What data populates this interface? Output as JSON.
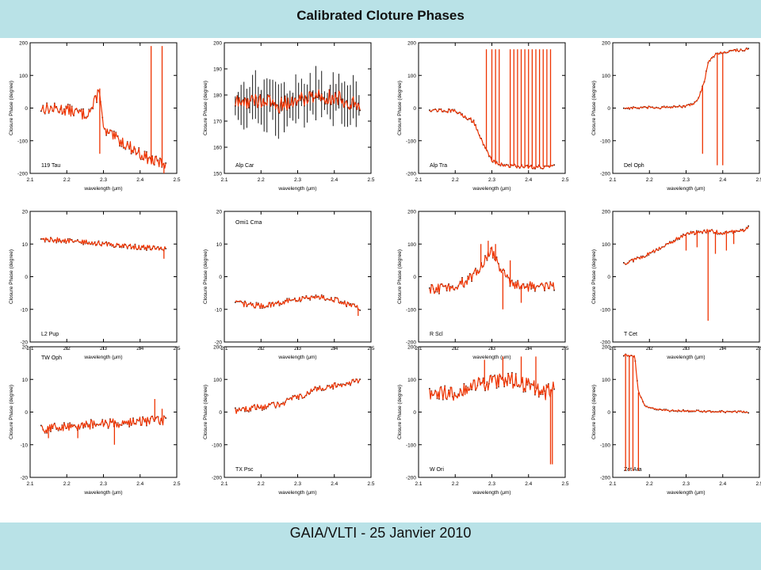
{
  "header": {
    "title": "Calibrated Cloture Phases"
  },
  "footer": {
    "text": "GAIA/VLTI - 25 Janvier 2010"
  },
  "colors": {
    "band": "#b9e2e7",
    "data_line": "#ee3300",
    "data_points": "#000000"
  },
  "chart_data": [
    {
      "type": "line",
      "label": "119 Tau",
      "label_pos": "bottom-left",
      "xlabel": "wavelength (μm)",
      "ylabel": "Closure Phase (degree)",
      "xlim": [
        2.1,
        2.5
      ],
      "ylim": [
        -200,
        200
      ],
      "xticks": [
        "2.1",
        "2.2",
        "2.3",
        "2.4",
        "2.5"
      ],
      "yticks": [
        "-200",
        "-100",
        "0",
        "100",
        "200"
      ],
      "points": [
        [
          2.13,
          0
        ],
        [
          2.2,
          -5
        ],
        [
          2.25,
          -20
        ],
        [
          2.27,
          0
        ],
        [
          2.29,
          60
        ],
        [
          2.3,
          -70
        ],
        [
          2.33,
          -90
        ],
        [
          2.36,
          -110
        ],
        [
          2.4,
          -140
        ],
        [
          2.43,
          -160
        ],
        [
          2.46,
          -170
        ],
        [
          2.47,
          -165
        ]
      ],
      "noise": 18,
      "spikes": [
        [
          2.29,
          -140
        ],
        [
          2.43,
          190
        ],
        [
          2.46,
          190
        ],
        [
          2.465,
          -200
        ]
      ]
    },
    {
      "type": "line",
      "label": "Alp Car",
      "label_pos": "bottom-left",
      "xlabel": "wavelength (μm)",
      "ylabel": "Closure Phase (degree)",
      "xlim": [
        2.1,
        2.5
      ],
      "ylim": [
        150,
        200
      ],
      "xticks": [
        "2.1",
        "2.2",
        "2.3",
        "2.4",
        "2.5"
      ],
      "yticks": [
        "150",
        "160",
        "170",
        "180",
        "190",
        "200"
      ],
      "points": [
        [
          2.13,
          177
        ],
        [
          2.2,
          178
        ],
        [
          2.25,
          176
        ],
        [
          2.3,
          178
        ],
        [
          2.35,
          180
        ],
        [
          2.4,
          179
        ],
        [
          2.45,
          177
        ],
        [
          2.47,
          176
        ]
      ],
      "noise": 3,
      "errorbars": 7,
      "spikes": []
    },
    {
      "type": "line",
      "label": "Alp Tra",
      "label_pos": "bottom-left",
      "xlabel": "wavelength (μm)",
      "ylabel": "Closure Phase (degree)",
      "xlim": [
        2.1,
        2.5
      ],
      "ylim": [
        -200,
        200
      ],
      "xticks": [
        "2.1",
        "2.2",
        "2.3",
        "2.4",
        "2.5"
      ],
      "yticks": [
        "-200",
        "-100",
        "0",
        "100",
        "200"
      ],
      "points": [
        [
          2.13,
          -5
        ],
        [
          2.2,
          -10
        ],
        [
          2.25,
          -40
        ],
        [
          2.28,
          -120
        ],
        [
          2.3,
          -160
        ],
        [
          2.33,
          -175
        ],
        [
          2.4,
          -180
        ],
        [
          2.47,
          -180
        ]
      ],
      "noise": 6,
      "spikes": [
        [
          2.285,
          180
        ],
        [
          2.3,
          180
        ],
        [
          2.31,
          180
        ],
        [
          2.32,
          180
        ],
        [
          2.35,
          180
        ],
        [
          2.36,
          180
        ],
        [
          2.37,
          180
        ],
        [
          2.38,
          180
        ],
        [
          2.39,
          180
        ],
        [
          2.4,
          180
        ],
        [
          2.41,
          180
        ],
        [
          2.42,
          180
        ],
        [
          2.43,
          180
        ],
        [
          2.44,
          180
        ],
        [
          2.45,
          180
        ],
        [
          2.46,
          180
        ]
      ]
    },
    {
      "type": "line",
      "label": "Del Oph",
      "label_pos": "bottom-left",
      "xlabel": "wavelength (μm)",
      "ylabel": "Closure Phase (degree)",
      "xlim": [
        2.1,
        2.5
      ],
      "ylim": [
        -200,
        200
      ],
      "xticks": [
        "2.1",
        "2.2",
        "2.3",
        "2.4",
        "2.5"
      ],
      "yticks": [
        "-200",
        "-100",
        "0",
        "100",
        "200"
      ],
      "points": [
        [
          2.13,
          0
        ],
        [
          2.25,
          2
        ],
        [
          2.3,
          5
        ],
        [
          2.33,
          20
        ],
        [
          2.35,
          80
        ],
        [
          2.36,
          140
        ],
        [
          2.38,
          165
        ],
        [
          2.42,
          175
        ],
        [
          2.47,
          180
        ]
      ],
      "noise": 4,
      "spikes": [
        [
          2.345,
          -140
        ],
        [
          2.385,
          -175
        ],
        [
          2.4,
          -175
        ]
      ]
    },
    {
      "type": "line",
      "label": "L2 Pup",
      "label_pos": "bottom-left",
      "xlabel": "wavelength (μm)",
      "ylabel": "Closure Phase (degree)",
      "xlim": [
        2.1,
        2.5
      ],
      "ylim": [
        -20,
        20
      ],
      "xticks": [
        "2.1",
        "2.2",
        "2.3",
        "2.4",
        "2.5"
      ],
      "yticks": [
        "-20",
        "-10",
        "0",
        "10",
        "20"
      ],
      "points": [
        [
          2.13,
          11.5
        ],
        [
          2.2,
          11
        ],
        [
          2.3,
          10
        ],
        [
          2.4,
          9
        ],
        [
          2.47,
          8.5
        ]
      ],
      "noise": 0.8,
      "spikes": [
        [
          2.465,
          5.5
        ]
      ]
    },
    {
      "type": "line",
      "label": "Omi1 Cma",
      "label_pos": "top-left",
      "xlabel": "wavelength (μm)",
      "ylabel": "Closure Phase (degree)",
      "xlim": [
        2.1,
        2.5
      ],
      "ylim": [
        -20,
        20
      ],
      "xticks": [
        "2.1",
        "2.2",
        "2.3",
        "2.4",
        "2.5"
      ],
      "yticks": [
        "-20",
        "-10",
        "0",
        "10",
        "20"
      ],
      "points": [
        [
          2.13,
          -8
        ],
        [
          2.2,
          -9
        ],
        [
          2.3,
          -7
        ],
        [
          2.35,
          -6
        ],
        [
          2.4,
          -7
        ],
        [
          2.45,
          -9
        ],
        [
          2.47,
          -10
        ]
      ],
      "noise": 0.9,
      "spikes": [
        [
          2.465,
          -12
        ]
      ]
    },
    {
      "type": "line",
      "label": "R Scl",
      "label_pos": "bottom-left",
      "xlabel": "wavelength (μm)",
      "ylabel": "Closure Phase (degree)",
      "xlim": [
        2.1,
        2.5
      ],
      "ylim": [
        -200,
        200
      ],
      "xticks": [
        "2.1",
        "2.2",
        "2.3",
        "2.4",
        "2.5"
      ],
      "yticks": [
        "-200",
        "-100",
        "0",
        "100",
        "200"
      ],
      "points": [
        [
          2.13,
          -40
        ],
        [
          2.2,
          -30
        ],
        [
          2.25,
          0
        ],
        [
          2.28,
          50
        ],
        [
          2.3,
          80
        ],
        [
          2.32,
          30
        ],
        [
          2.35,
          -20
        ],
        [
          2.4,
          -30
        ],
        [
          2.47,
          -30
        ]
      ],
      "noise": 16,
      "spikes": [
        [
          2.27,
          100
        ],
        [
          2.29,
          110
        ],
        [
          2.31,
          100
        ],
        [
          2.33,
          -100
        ],
        [
          2.35,
          50
        ],
        [
          2.38,
          -80
        ]
      ]
    },
    {
      "type": "line",
      "label": "T Cet",
      "label_pos": "bottom-left",
      "xlabel": "wavelength (μm)",
      "ylabel": "Closure Phase (degree)",
      "xlim": [
        2.1,
        2.5
      ],
      "ylim": [
        -200,
        200
      ],
      "xticks": [
        "2.1",
        "2.2",
        "2.3",
        "2.4",
        "2.5"
      ],
      "yticks": [
        "-200",
        "-100",
        "0",
        "100",
        "200"
      ],
      "points": [
        [
          2.13,
          40
        ],
        [
          2.2,
          70
        ],
        [
          2.25,
          100
        ],
        [
          2.3,
          130
        ],
        [
          2.35,
          140
        ],
        [
          2.4,
          135
        ],
        [
          2.45,
          140
        ],
        [
          2.47,
          150
        ]
      ],
      "noise": 6,
      "spikes": [
        [
          2.3,
          80
        ],
        [
          2.33,
          90
        ],
        [
          2.36,
          -135
        ],
        [
          2.38,
          70
        ],
        [
          2.41,
          80
        ],
        [
          2.43,
          100
        ]
      ]
    },
    {
      "type": "line",
      "label": "TW Oph",
      "label_pos": "top-left",
      "xlabel": "wavelength (μm)",
      "ylabel": "Closure Phase (degree)",
      "xlim": [
        2.1,
        2.5
      ],
      "ylim": [
        -20,
        20
      ],
      "xticks": [
        "2.1",
        "2.2",
        "2.3",
        "2.4",
        "2.5"
      ],
      "yticks": [
        "-20",
        "-10",
        "0",
        "10",
        "20"
      ],
      "points": [
        [
          2.13,
          -5
        ],
        [
          2.2,
          -4.5
        ],
        [
          2.3,
          -3.5
        ],
        [
          2.4,
          -3
        ],
        [
          2.47,
          -2.5
        ]
      ],
      "noise": 1.5,
      "spikes": [
        [
          2.15,
          -8
        ],
        [
          2.23,
          -8
        ],
        [
          2.33,
          -10
        ],
        [
          2.44,
          4
        ],
        [
          2.46,
          1
        ]
      ]
    },
    {
      "type": "line",
      "label": "TX Psc",
      "label_pos": "bottom-left",
      "xlabel": "wavelength (μm)",
      "ylabel": "Closure Phase (degree)",
      "xlim": [
        2.1,
        2.5
      ],
      "ylim": [
        -200,
        200
      ],
      "xticks": [
        "2.1",
        "2.2",
        "2.3",
        "2.4",
        "2.5"
      ],
      "yticks": [
        "-200",
        "-100",
        "0",
        "100",
        "200"
      ],
      "points": [
        [
          2.13,
          5
        ],
        [
          2.2,
          15
        ],
        [
          2.25,
          25
        ],
        [
          2.3,
          45
        ],
        [
          2.35,
          70
        ],
        [
          2.4,
          80
        ],
        [
          2.45,
          90
        ],
        [
          2.47,
          100
        ]
      ],
      "noise": 10,
      "spikes": []
    },
    {
      "type": "line",
      "label": "W Ori",
      "label_pos": "bottom-left",
      "xlabel": "wavelength (μm)",
      "ylabel": "Closure Phase (degree)",
      "xlim": [
        2.1,
        2.5
      ],
      "ylim": [
        -200,
        200
      ],
      "xticks": [
        "2.1",
        "2.2",
        "2.3",
        "2.4",
        "2.5"
      ],
      "yticks": [
        "-200",
        "-100",
        "0",
        "100",
        "200"
      ],
      "points": [
        [
          2.13,
          50
        ],
        [
          2.2,
          60
        ],
        [
          2.25,
          80
        ],
        [
          2.3,
          90
        ],
        [
          2.35,
          100
        ],
        [
          2.4,
          80
        ],
        [
          2.45,
          60
        ],
        [
          2.47,
          80
        ]
      ],
      "noise": 25,
      "spikes": [
        [
          2.28,
          160
        ],
        [
          2.33,
          170
        ],
        [
          2.38,
          170
        ],
        [
          2.42,
          170
        ],
        [
          2.46,
          -160
        ],
        [
          2.465,
          -160
        ]
      ]
    },
    {
      "type": "line",
      "label": "Zet Ara",
      "label_pos": "bottom-left",
      "xlabel": "wavelength (μm)",
      "ylabel": "Closure Phase (degree)",
      "xlim": [
        2.1,
        2.5
      ],
      "ylim": [
        -200,
        200
      ],
      "xticks": [
        "2.1",
        "2.2",
        "2.3",
        "2.4",
        "2.5"
      ],
      "yticks": [
        "-200",
        "-100",
        "0",
        "100",
        "200"
      ],
      "points": [
        [
          2.13,
          175
        ],
        [
          2.16,
          170
        ],
        [
          2.17,
          60
        ],
        [
          2.19,
          15
        ],
        [
          2.25,
          5
        ],
        [
          2.35,
          2
        ],
        [
          2.47,
          0
        ]
      ],
      "noise": 3,
      "spikes": [
        [
          2.135,
          -180
        ],
        [
          2.145,
          -180
        ],
        [
          2.155,
          -180
        ],
        [
          2.17,
          -180
        ]
      ]
    }
  ]
}
